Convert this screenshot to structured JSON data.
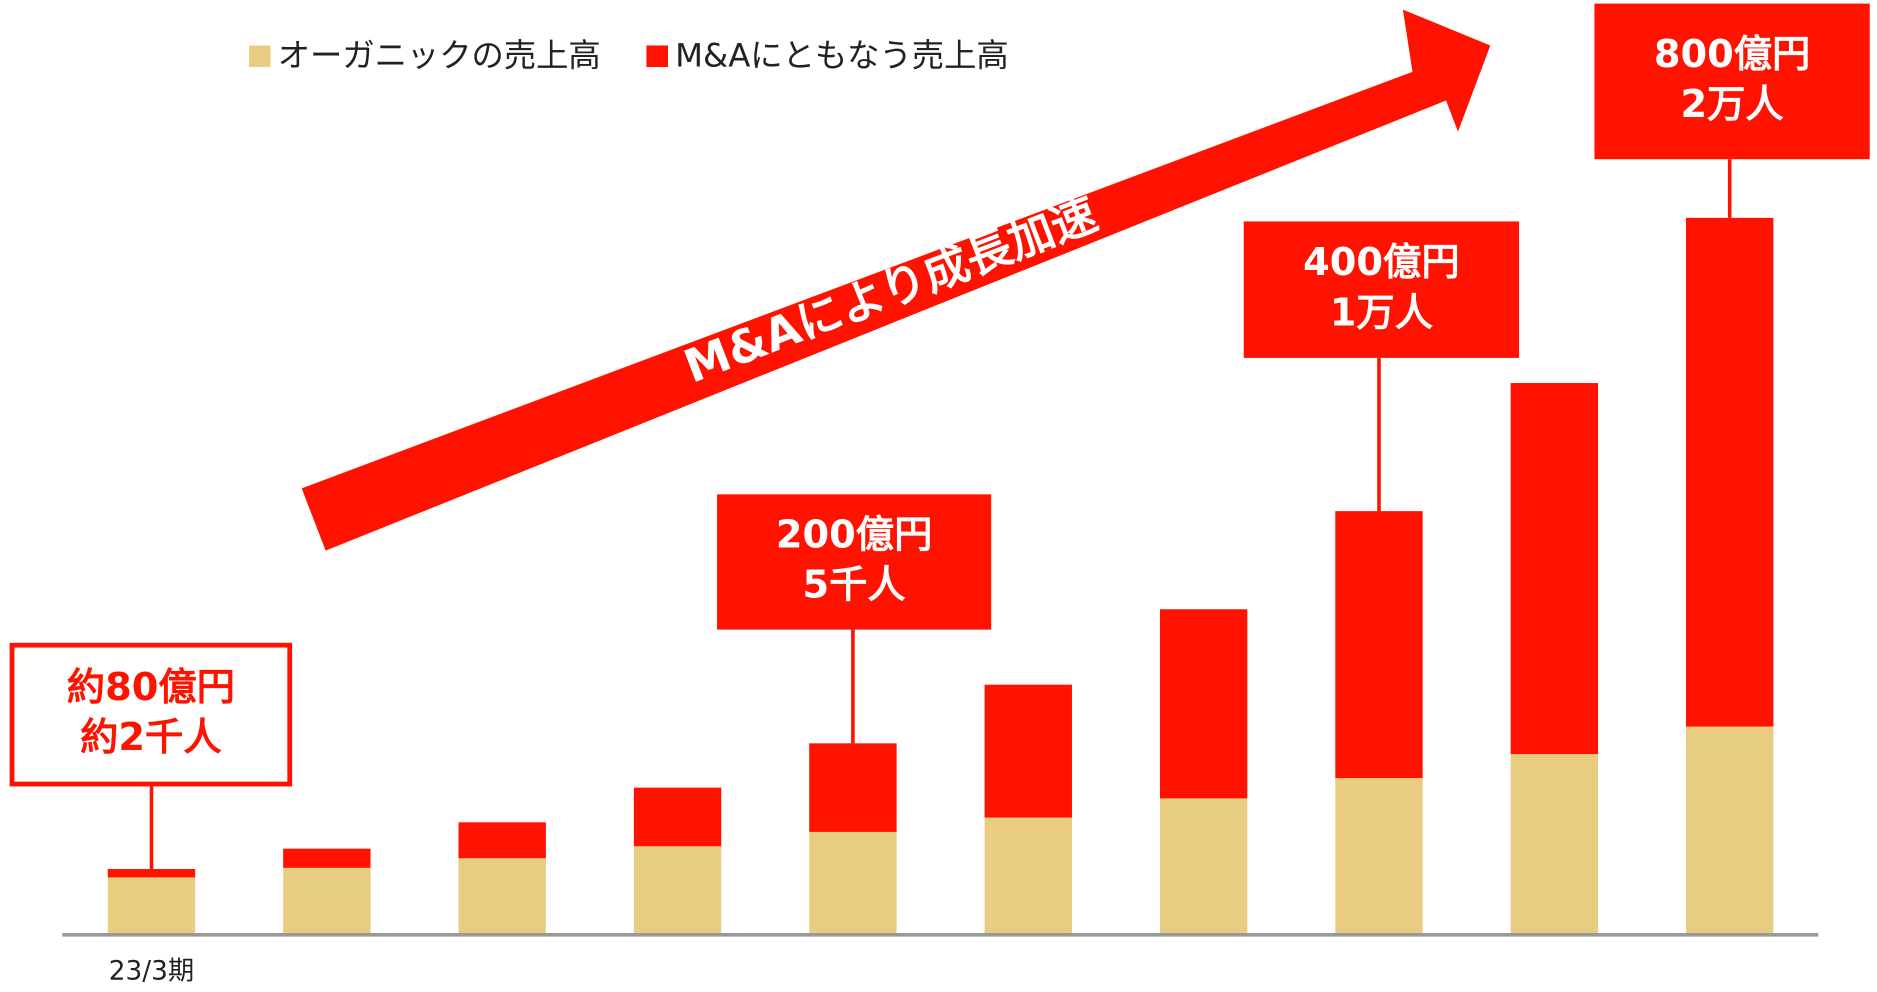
{
  "chart_data": {
    "type": "stacked_bar",
    "categories": [
      "23/3期",
      null,
      null,
      null,
      null,
      null,
      null,
      null,
      null,
      null
    ],
    "series": [
      {
        "name": "オーガニックの売上高",
        "color": "#e8cc82",
        "values": [
          48,
          56,
          64,
          74,
          86,
          98,
          114,
          131,
          151,
          174
        ]
      },
      {
        "name": "M&Aにともなう売上高",
        "color": "#ff1200",
        "values": [
          7,
          16,
          30,
          49,
          74,
          111,
          158,
          223,
          310,
          425
        ]
      }
    ],
    "ylim": [
      0,
      781
    ],
    "annotations": [
      {
        "lines": [
          "約80億円",
          "約2千人"
        ]
      },
      {
        "lines": [
          "200億円",
          "5千人"
        ]
      },
      {
        "lines": [
          "400億円",
          "1万人"
        ]
      },
      {
        "lines": [
          "800億円",
          "2万人"
        ]
      }
    ],
    "arrow_text": "M&Aにより成長加速"
  }
}
